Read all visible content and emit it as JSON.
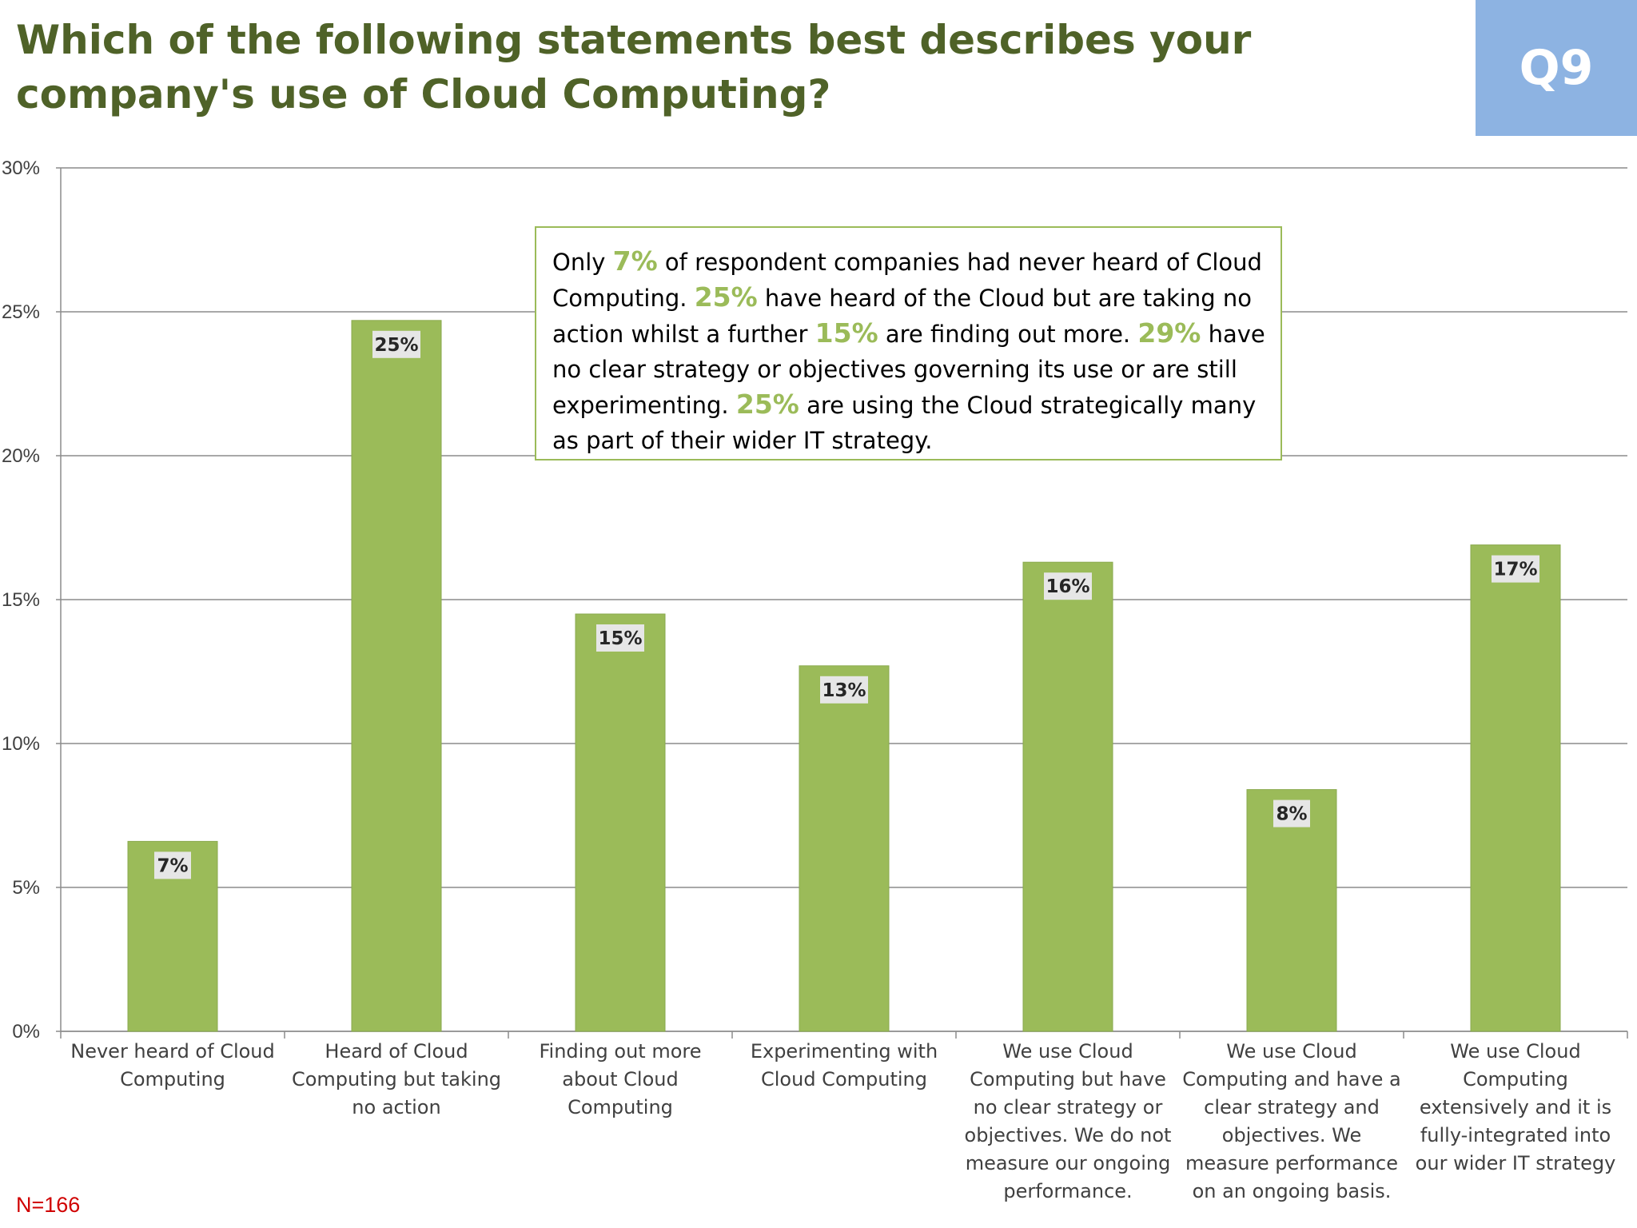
{
  "header": {
    "title_line1": "Which of the following statements best describes your",
    "title_line2": "company's use of Cloud Computing?",
    "question_badge": "Q9"
  },
  "colors": {
    "title": "#4f6228",
    "bar": "#9bbb59",
    "badge": "#8db3e2",
    "sample_size": "#d00000"
  },
  "callout": {
    "t1": "Only ",
    "h1": "7%",
    "t2": " of respondent companies had never heard of Cloud Computing. ",
    "h2": "25%",
    "t3": " have heard of the Cloud but are taking no action whilst a further ",
    "h3": "15%",
    "t4": " are finding out more. ",
    "h4": "29%",
    "t5": " have no clear strategy or objectives governing its use or are still experimenting. ",
    "h5": "25%",
    "t6": " are using the Cloud strategically  many as part of their wider IT strategy."
  },
  "sample_size": "N=166",
  "chart_data": {
    "type": "bar",
    "categories": [
      "Never heard of Cloud Computing",
      "Heard of Cloud Computing but taking no action",
      "Finding out more about Cloud Computing",
      "Experimenting with Cloud Computing",
      "We use Cloud Computing but have no clear strategy or objectives. We do not measure our ongoing performance.",
      "We use Cloud Computing and have a clear strategy and objectives. We measure performance on an ongoing basis.",
      "We use Cloud Computing extensively and it is fully-integrated into our wider IT strategy"
    ],
    "values": [
      6.6,
      24.7,
      14.5,
      12.7,
      16.3,
      8.4,
      16.9
    ],
    "data_labels": [
      "7%",
      "25%",
      "15%",
      "13%",
      "16%",
      "8%",
      "17%"
    ],
    "y_ticks": [
      "0%",
      "5%",
      "10%",
      "15%",
      "20%",
      "25%",
      "30%"
    ],
    "ylim": [
      0,
      30
    ],
    "grid": true,
    "title": "Which of the following statements best describes your company's use of Cloud Computing?"
  }
}
